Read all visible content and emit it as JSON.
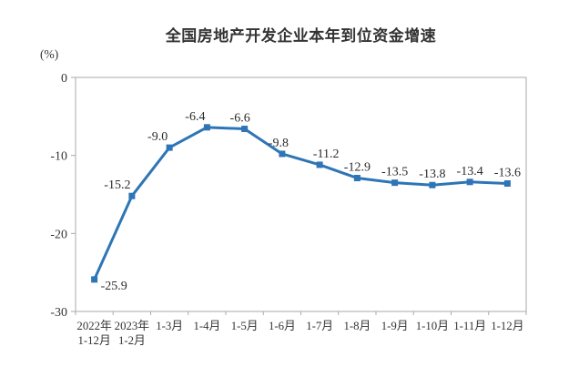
{
  "chart": {
    "title": "全国房地产开发企业本年到位资金增速",
    "unit_label": "(%)"
  },
  "chart_data": {
    "type": "line",
    "title": "全国房地产开发企业本年到位资金增速",
    "xlabel": "",
    "ylabel": "(%)",
    "categories": [
      "2022年\n1-12月",
      "2023年\n1-2月",
      "1-3月",
      "1-4月",
      "1-5月",
      "1-6月",
      "1-7月",
      "1-8月",
      "1-9月",
      "1-10月",
      "1-11月",
      "1-12月"
    ],
    "values": [
      -25.9,
      -15.2,
      -9.0,
      -6.4,
      -6.6,
      -9.8,
      -11.2,
      -12.9,
      -13.5,
      -13.8,
      -13.4,
      -13.6
    ],
    "data_labels": [
      "-25.9",
      "-15.2",
      "-9.0",
      "-6.4",
      "-6.6",
      "-9.8",
      "-11.2",
      "-12.9",
      "-13.5",
      "-13.8",
      "-13.4",
      "-13.6"
    ],
    "ylim": [
      -30,
      0
    ],
    "yticks": [
      0,
      -10,
      -20,
      -30
    ],
    "grid": false,
    "legend": false,
    "marker": "square",
    "line_color": "#2E75B6",
    "label_color": "#2b2b2b",
    "axis_color": "#aaaaaa",
    "title_color": "#333333"
  }
}
